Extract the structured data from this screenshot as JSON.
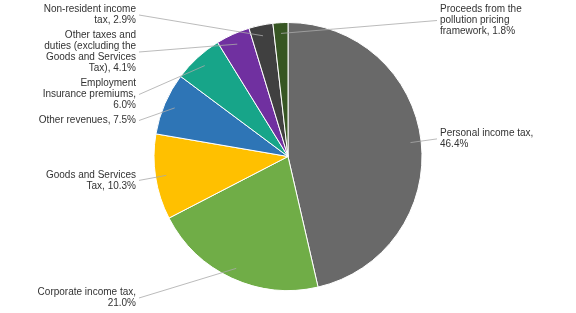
{
  "chart_data": {
    "type": "pie",
    "categories": [
      "Personal income tax,\n46.4%",
      "Corporate income tax,\n21.0%",
      "Goods and Services\nTax, 10.3%",
      "Other revenues, 7.5%",
      "Employment\nInsurance premiums,\n6.0%",
      "Other taxes and\nduties (excluding the\nGoods and Services\nTax), 4.1%",
      "Non-resident income\ntax, 2.9%",
      "Proceeds from the\npollution pricing\nframework, 1.8%"
    ],
    "values": [
      46.4,
      21.0,
      10.3,
      7.5,
      6.0,
      4.1,
      2.9,
      1.8
    ],
    "colors": [
      "#696969",
      "#70ad47",
      "#ffc000",
      "#2e75b6",
      "#17a589",
      "#7030a0",
      "#404040",
      "#375623"
    ]
  }
}
